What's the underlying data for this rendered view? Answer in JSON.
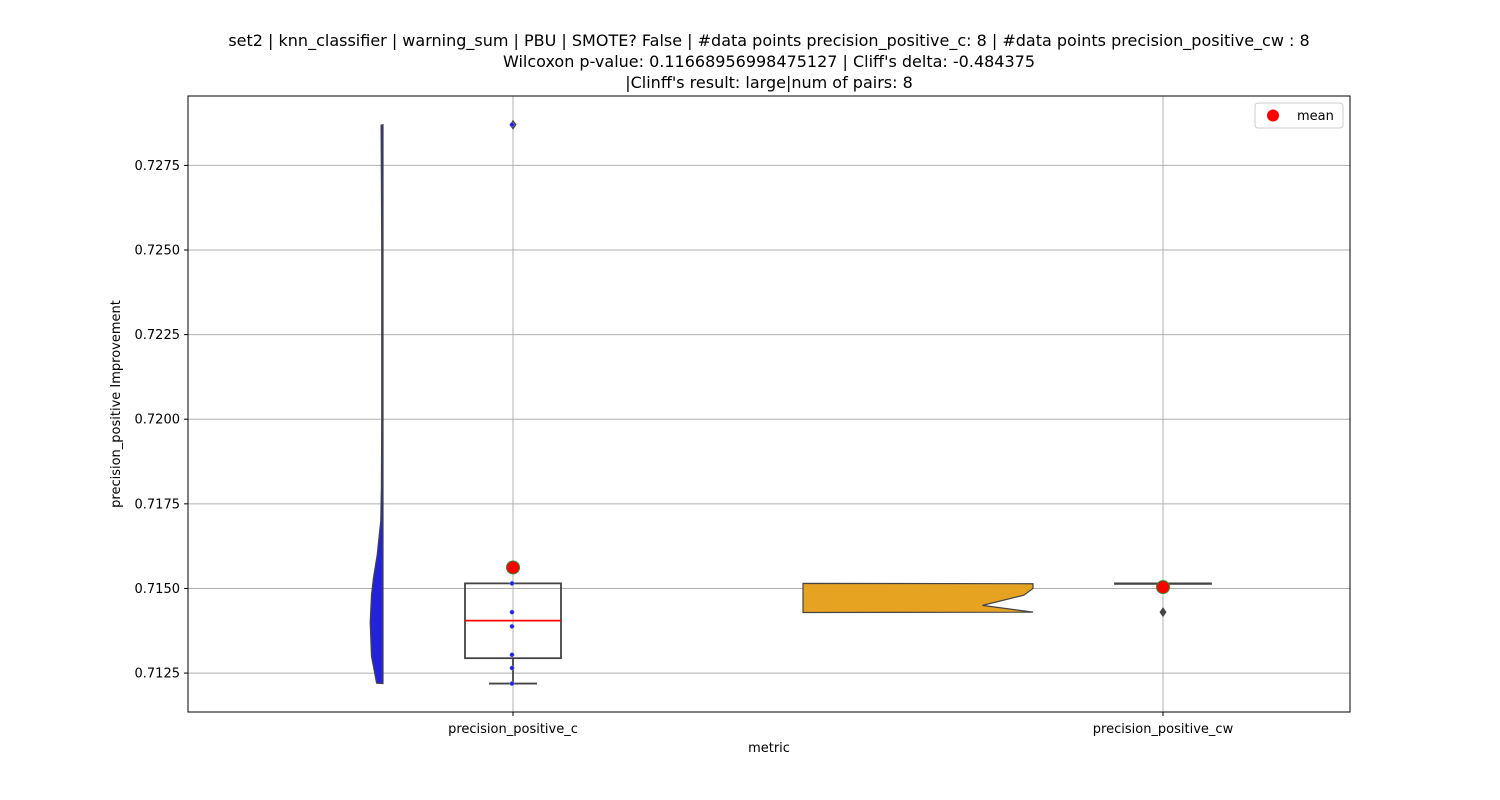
{
  "chart_data": {
    "type": "violin+box",
    "title_lines": [
      "set2 | knn_classifier | warning_sum | PBU | SMOTE? False | #data points precision_positive_c: 8 | #data points precision_positive_cw : 8",
      "Wilcoxon p-value: 0.11668956998475127 | Cliff's delta: -0.484375",
      "|Clinff's result: large|num of pairs: 8"
    ],
    "xlabel": "metric",
    "ylabel": "precision_positive Improvement",
    "categories": [
      "precision_positive_c",
      "precision_positive_cw"
    ],
    "ylim": [
      0.71135,
      0.72955
    ],
    "yticks": [
      0.7125,
      0.715,
      0.7175,
      0.72,
      0.7225,
      0.725,
      0.7275
    ],
    "ytick_labels": [
      "0.7125",
      "0.7150",
      "0.7175",
      "0.7200",
      "0.7225",
      "0.7250",
      "0.7275"
    ],
    "grid": true,
    "legend": {
      "placement": "top-right",
      "entries": [
        {
          "label": "mean",
          "marker": "red-dot"
        }
      ]
    },
    "series": [
      {
        "category": "precision_positive_c",
        "violin_color": "#2222dd",
        "violin_side": "left",
        "violin_profile": [
          [
            0.71219,
            0.0
          ],
          [
            0.7122,
            0.2
          ],
          [
            0.713,
            0.36
          ],
          [
            0.714,
            0.4
          ],
          [
            0.7148,
            0.36
          ],
          [
            0.7153,
            0.3
          ],
          [
            0.716,
            0.18
          ],
          [
            0.717,
            0.07
          ],
          [
            0.718,
            0.05
          ],
          [
            0.72,
            0.04
          ],
          [
            0.725,
            0.04
          ],
          [
            0.727,
            0.05
          ],
          [
            0.72869,
            0.06
          ],
          [
            0.7287,
            0.0
          ]
        ],
        "box": {
          "whisker_low": 0.71219,
          "q1": 0.71294,
          "median": 0.71405,
          "q3": 0.71515,
          "whisker_high": 0.71515
        },
        "outliers": [
          0.7287
        ],
        "points": [
          0.71219,
          0.71265,
          0.71304,
          0.71388,
          0.7143,
          0.71515,
          0.7287
        ],
        "mean": 0.71562
      },
      {
        "category": "precision_positive_cw",
        "violin_color": "#e6a322",
        "violin_side": "right",
        "violin_profile": [
          [
            0.71429,
            0.0
          ],
          [
            0.7143,
            1.0
          ],
          [
            0.7145,
            0.78
          ],
          [
            0.7148,
            0.96
          ],
          [
            0.715,
            1.0
          ],
          [
            0.71514,
            1.0
          ],
          [
            0.71515,
            0.0
          ]
        ],
        "box": {
          "whisker_low": 0.71515,
          "q1": 0.71515,
          "median": 0.71515,
          "q3": 0.71515,
          "whisker_high": 0.71515
        },
        "outliers": [
          0.7143
        ],
        "points": [],
        "mean": 0.71504
      }
    ]
  }
}
